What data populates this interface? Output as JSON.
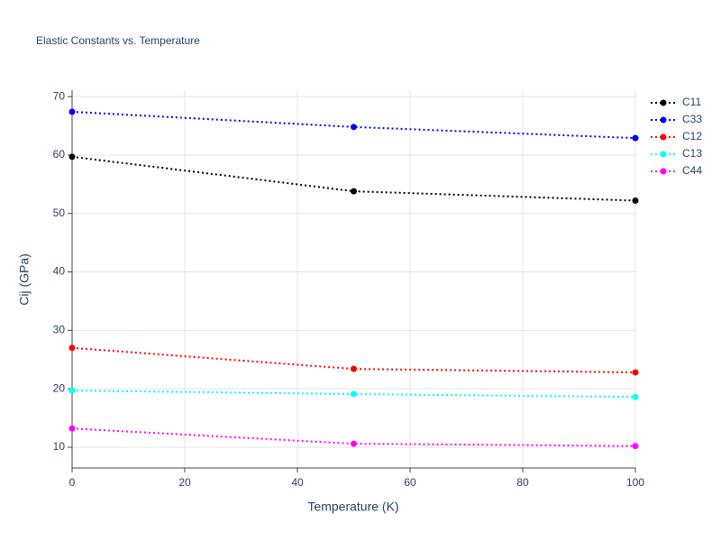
{
  "chart_data": {
    "type": "line",
    "title": "Elastic Constants vs. Temperature",
    "x_label": "Temperature (K)",
    "y_label": "Cij (GPa)",
    "x": [
      0,
      50,
      100
    ],
    "series": [
      {
        "name": "C11",
        "color": "#000000",
        "values": [
          59.7,
          53.8,
          52.2
        ]
      },
      {
        "name": "C33",
        "color": "#0000ff",
        "values": [
          67.4,
          64.8,
          62.9
        ]
      },
      {
        "name": "C12",
        "color": "#ff0000",
        "values": [
          27.0,
          23.4,
          22.8
        ]
      },
      {
        "name": "C13",
        "color": "#00ffff",
        "values": [
          19.7,
          19.1,
          18.6
        ]
      },
      {
        "name": "C44",
        "color": "#ff00ff",
        "values": [
          13.2,
          10.6,
          10.2
        ]
      }
    ],
    "xlim": [
      0,
      100
    ],
    "xticks": [
      0,
      20,
      40,
      60,
      80,
      100
    ],
    "ylim": [
      6.45,
      71.1
    ],
    "yticks": [
      10,
      20,
      30,
      40,
      50,
      60,
      70
    ],
    "grid": true,
    "legend": "right"
  }
}
